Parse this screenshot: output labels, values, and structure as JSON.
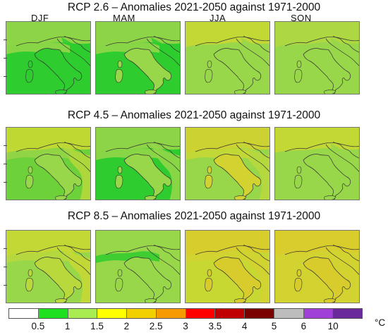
{
  "rows": [
    {
      "title": "RCP 2.6 – Anomalies 2021-2050 against 1971-2000",
      "panels": [
        {
          "base": "#2ecc2e",
          "coast": "#98d64a",
          "east": "#2ecc2e",
          "italy": "#2ecc2e",
          "north": "#98d64a"
        },
        {
          "base": "#2ecc2e",
          "coast": "#98d64a",
          "east": "#2ecc2e",
          "italy": "#98d64a",
          "north": "#98d64a"
        },
        {
          "base": "#98d64a",
          "coast": "#98d64a",
          "east": "#98d64a",
          "italy": "#98d64a",
          "north": "#c8d832"
        },
        {
          "base": "#98d64a",
          "coast": "#98d64a",
          "east": "#98d64a",
          "italy": "#98d64a",
          "north": "#b0d840"
        }
      ]
    },
    {
      "title": "RCP 4.5 – Anomalies 2021-2050 against 1971-2000",
      "panels": [
        {
          "base": "#6dd23a",
          "coast": "#98d64a",
          "east": "#b8d83c",
          "italy": "#98d64a",
          "north": "#c8d832"
        },
        {
          "base": "#2ecc2e",
          "coast": "#98d64a",
          "east": "#98d64a",
          "italy": "#98d64a",
          "north": "#98d64a"
        },
        {
          "base": "#98d64a",
          "coast": "#c8d832",
          "east": "#b8d83c",
          "italy": "#d2d230",
          "north": "#d2d230"
        },
        {
          "base": "#98d64a",
          "coast": "#98d64a",
          "east": "#98d64a",
          "italy": "#98d64a",
          "north": "#c8d832"
        }
      ]
    },
    {
      "title": "RCP 8.5 – Anomalies 2021-2050 against 1971-2000",
      "panels": [
        {
          "base": "#98d64a",
          "coast": "#b8d83c",
          "east": "#c8d832",
          "italy": "#b8d83c",
          "north": "#c8d832"
        },
        {
          "base": "#98d64a",
          "coast": "#2ecc2e",
          "east": "#98d64a",
          "italy": "#98d64a",
          "north": "#98d64a"
        },
        {
          "base": "#c8d832",
          "coast": "#d2d230",
          "east": "#d2d230",
          "italy": "#d8cc2c",
          "north": "#d8cc2c"
        },
        {
          "base": "#d2d230",
          "coast": "#d2d230",
          "east": "#d2d230",
          "italy": "#d8cc2c",
          "north": "#d8cc2c"
        }
      ]
    }
  ],
  "seasons": [
    "DJF",
    "MAM",
    "JJA",
    "SON"
  ],
  "colorbar": {
    "unit": "°C",
    "labels": [
      "0.5",
      "1",
      "1.5",
      "2",
      "2.5",
      "3",
      "3.5",
      "4",
      "5",
      "6",
      "10"
    ],
    "colors": [
      "#ffffff",
      "#1ee01e",
      "#a8ec52",
      "#ffff00",
      "#f2d000",
      "#f59a00",
      "#ff0000",
      "#c00000",
      "#7a0000",
      "#bdbdbd",
      "#a040d8",
      "#6a2a9c"
    ]
  }
}
